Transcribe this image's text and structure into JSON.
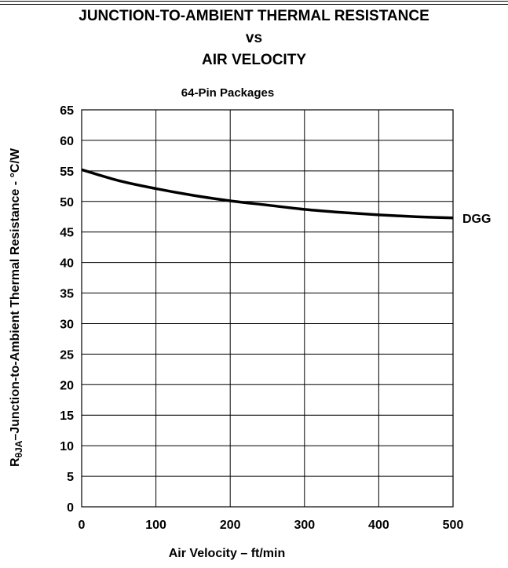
{
  "chart_data": {
    "type": "line",
    "title_lines": [
      "JUNCTION-TO-AMBIENT THERMAL RESISTANCE",
      "vs",
      "AIR VELOCITY"
    ],
    "subtitle": "64-Pin Packages",
    "xlabel": "Air Velocity – ft/min",
    "ylabel": {
      "prefix": "R",
      "subscript": "θJA",
      "rest": "–Junction-to-Ambient Thermal Resistance - °C/W"
    },
    "xlim": [
      0,
      500
    ],
    "ylim": [
      0,
      65
    ],
    "x_ticks": [
      "0",
      "100",
      "200",
      "300",
      "400",
      "500"
    ],
    "y_ticks": [
      "0",
      "5",
      "10",
      "15",
      "20",
      "25",
      "30",
      "35",
      "40",
      "45",
      "50",
      "55",
      "60",
      "65"
    ],
    "grid": true,
    "series": [
      {
        "name": "DGG",
        "x": [
          0,
          50,
          100,
          150,
          200,
          250,
          300,
          350,
          400,
          450,
          500
        ],
        "y": [
          55.2,
          53.4,
          52.1,
          51.0,
          50.1,
          49.4,
          48.7,
          48.2,
          47.8,
          47.5,
          47.3
        ]
      }
    ]
  }
}
